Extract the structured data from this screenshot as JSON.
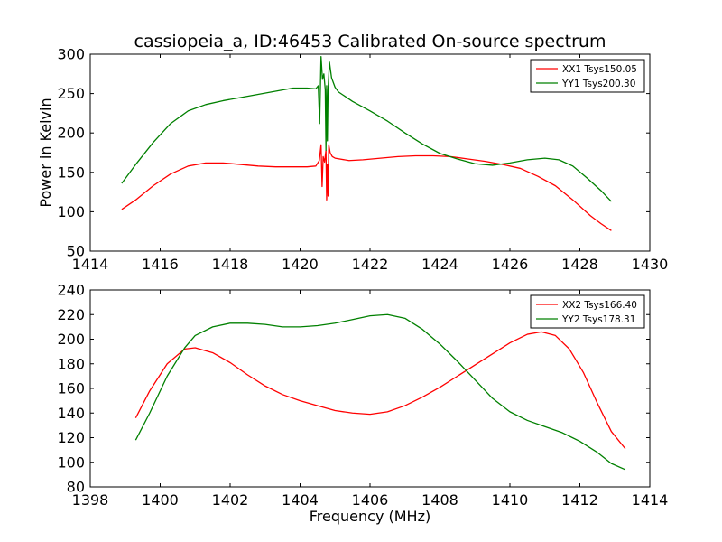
{
  "figure": {
    "title": "cassiopeia_a, ID:46453 Calibrated On-source spectrum",
    "ylabel_top": "Power in Kelvin",
    "xlabel_bottom": "Frequency (MHz)"
  },
  "chart_data": [
    {
      "type": "line",
      "title": "cassiopeia_a, ID:46453 Calibrated On-source spectrum",
      "xlabel": "",
      "ylabel": "Power in Kelvin",
      "xlim": [
        1414,
        1430
      ],
      "ylim": [
        50,
        300
      ],
      "xticks": [
        "1414",
        "1416",
        "1418",
        "1420",
        "1422",
        "1424",
        "1426",
        "1428",
        "1430"
      ],
      "yticks": [
        "50",
        "100",
        "150",
        "200",
        "250",
        "300"
      ],
      "grid": false,
      "legend_position": "top-right",
      "series": [
        {
          "name": "XX1 Tsys150.05",
          "color": "#ff0000",
          "points": [
            [
              1414.9,
              103
            ],
            [
              1415.3,
              115
            ],
            [
              1415.8,
              133
            ],
            [
              1416.3,
              148
            ],
            [
              1416.8,
              158
            ],
            [
              1417.3,
              162
            ],
            [
              1417.8,
              162
            ],
            [
              1418.3,
              160
            ],
            [
              1418.8,
              158
            ],
            [
              1419.3,
              157
            ],
            [
              1419.8,
              157
            ],
            [
              1420.2,
              157
            ],
            [
              1420.45,
              158
            ],
            [
              1420.55,
              165
            ],
            [
              1420.6,
              185
            ],
            [
              1420.63,
              132
            ],
            [
              1420.66,
              170
            ],
            [
              1420.7,
              163
            ],
            [
              1420.74,
              178
            ],
            [
              1420.76,
              115
            ],
            [
              1420.78,
              160
            ],
            [
              1420.8,
              120
            ],
            [
              1420.82,
              185
            ],
            [
              1420.86,
              175
            ],
            [
              1420.92,
              170
            ],
            [
              1421.0,
              168
            ],
            [
              1421.4,
              165
            ],
            [
              1421.8,
              166
            ],
            [
              1422.3,
              168
            ],
            [
              1422.8,
              170
            ],
            [
              1423.3,
              171
            ],
            [
              1423.8,
              171
            ],
            [
              1424.3,
              170
            ],
            [
              1424.8,
              167
            ],
            [
              1425.3,
              164
            ],
            [
              1425.8,
              160
            ],
            [
              1426.3,
              155
            ],
            [
              1426.8,
              145
            ],
            [
              1427.3,
              133
            ],
            [
              1427.8,
              115
            ],
            [
              1428.3,
              95
            ],
            [
              1428.6,
              85
            ],
            [
              1428.9,
              76
            ]
          ]
        },
        {
          "name": "YY1 Tsys200.30",
          "color": "#008000",
          "points": [
            [
              1414.9,
              136
            ],
            [
              1415.3,
              160
            ],
            [
              1415.8,
              188
            ],
            [
              1416.3,
              212
            ],
            [
              1416.8,
              228
            ],
            [
              1417.3,
              236
            ],
            [
              1417.8,
              241
            ],
            [
              1418.3,
              245
            ],
            [
              1418.8,
              249
            ],
            [
              1419.3,
              253
            ],
            [
              1419.8,
              257
            ],
            [
              1420.2,
              257
            ],
            [
              1420.45,
              256
            ],
            [
              1420.52,
              260
            ],
            [
              1420.56,
              212
            ],
            [
              1420.6,
              297
            ],
            [
              1420.64,
              268
            ],
            [
              1420.68,
              275
            ],
            [
              1420.72,
              255
            ],
            [
              1420.74,
              178
            ],
            [
              1420.76,
              260
            ],
            [
              1420.78,
              190
            ],
            [
              1420.8,
              255
            ],
            [
              1420.84,
              290
            ],
            [
              1420.9,
              270
            ],
            [
              1421.0,
              258
            ],
            [
              1421.1,
              252
            ],
            [
              1421.5,
              240
            ],
            [
              1422.0,
              228
            ],
            [
              1422.5,
              215
            ],
            [
              1423.0,
              200
            ],
            [
              1423.5,
              186
            ],
            [
              1424.0,
              174
            ],
            [
              1424.5,
              167
            ],
            [
              1425.0,
              161
            ],
            [
              1425.5,
              159
            ],
            [
              1426.0,
              162
            ],
            [
              1426.5,
              166
            ],
            [
              1427.0,
              168
            ],
            [
              1427.4,
              166
            ],
            [
              1427.8,
              158
            ],
            [
              1428.2,
              143
            ],
            [
              1428.6,
              127
            ],
            [
              1428.9,
              113
            ]
          ]
        }
      ]
    },
    {
      "type": "line",
      "title": "",
      "xlabel": "Frequency (MHz)",
      "ylabel": "",
      "xlim": [
        1398,
        1414
      ],
      "ylim": [
        80,
        240
      ],
      "xticks": [
        "1398",
        "1400",
        "1402",
        "1404",
        "1406",
        "1408",
        "1410",
        "1412",
        "1414"
      ],
      "yticks": [
        "80",
        "100",
        "120",
        "140",
        "160",
        "180",
        "200",
        "220",
        "240"
      ],
      "grid": false,
      "legend_position": "top-right",
      "series": [
        {
          "name": "XX2 Tsys166.40",
          "color": "#ff0000",
          "points": [
            [
              1399.3,
              136
            ],
            [
              1399.7,
              158
            ],
            [
              1400.2,
              180
            ],
            [
              1400.7,
              192
            ],
            [
              1401.0,
              193
            ],
            [
              1401.5,
              189
            ],
            [
              1402.0,
              181
            ],
            [
              1402.5,
              171
            ],
            [
              1403.0,
              162
            ],
            [
              1403.5,
              155
            ],
            [
              1404.0,
              150
            ],
            [
              1404.5,
              146
            ],
            [
              1405.0,
              142
            ],
            [
              1405.5,
              140
            ],
            [
              1406.0,
              139
            ],
            [
              1406.5,
              141
            ],
            [
              1407.0,
              146
            ],
            [
              1407.5,
              153
            ],
            [
              1408.0,
              161
            ],
            [
              1408.5,
              170
            ],
            [
              1409.0,
              179
            ],
            [
              1409.5,
              188
            ],
            [
              1410.0,
              197
            ],
            [
              1410.5,
              204
            ],
            [
              1410.9,
              206
            ],
            [
              1411.3,
              203
            ],
            [
              1411.7,
              192
            ],
            [
              1412.1,
              173
            ],
            [
              1412.5,
              148
            ],
            [
              1412.9,
              125
            ],
            [
              1413.3,
              111
            ]
          ]
        },
        {
          "name": "YY2 Tsys178.31",
          "color": "#008000",
          "points": [
            [
              1399.3,
              118
            ],
            [
              1399.7,
              140
            ],
            [
              1400.2,
              170
            ],
            [
              1400.7,
              193
            ],
            [
              1401.0,
              203
            ],
            [
              1401.5,
              210
            ],
            [
              1402.0,
              213
            ],
            [
              1402.5,
              213
            ],
            [
              1403.0,
              212
            ],
            [
              1403.5,
              210
            ],
            [
              1404.0,
              210
            ],
            [
              1404.5,
              211
            ],
            [
              1405.0,
              213
            ],
            [
              1405.5,
              216
            ],
            [
              1406.0,
              219
            ],
            [
              1406.5,
              220
            ],
            [
              1407.0,
              217
            ],
            [
              1407.5,
              208
            ],
            [
              1408.0,
              196
            ],
            [
              1408.5,
              182
            ],
            [
              1409.0,
              167
            ],
            [
              1409.5,
              152
            ],
            [
              1410.0,
              141
            ],
            [
              1410.5,
              134
            ],
            [
              1411.0,
              129
            ],
            [
              1411.5,
              124
            ],
            [
              1412.0,
              117
            ],
            [
              1412.5,
              108
            ],
            [
              1412.9,
              99
            ],
            [
              1413.3,
              94
            ]
          ]
        }
      ]
    }
  ]
}
